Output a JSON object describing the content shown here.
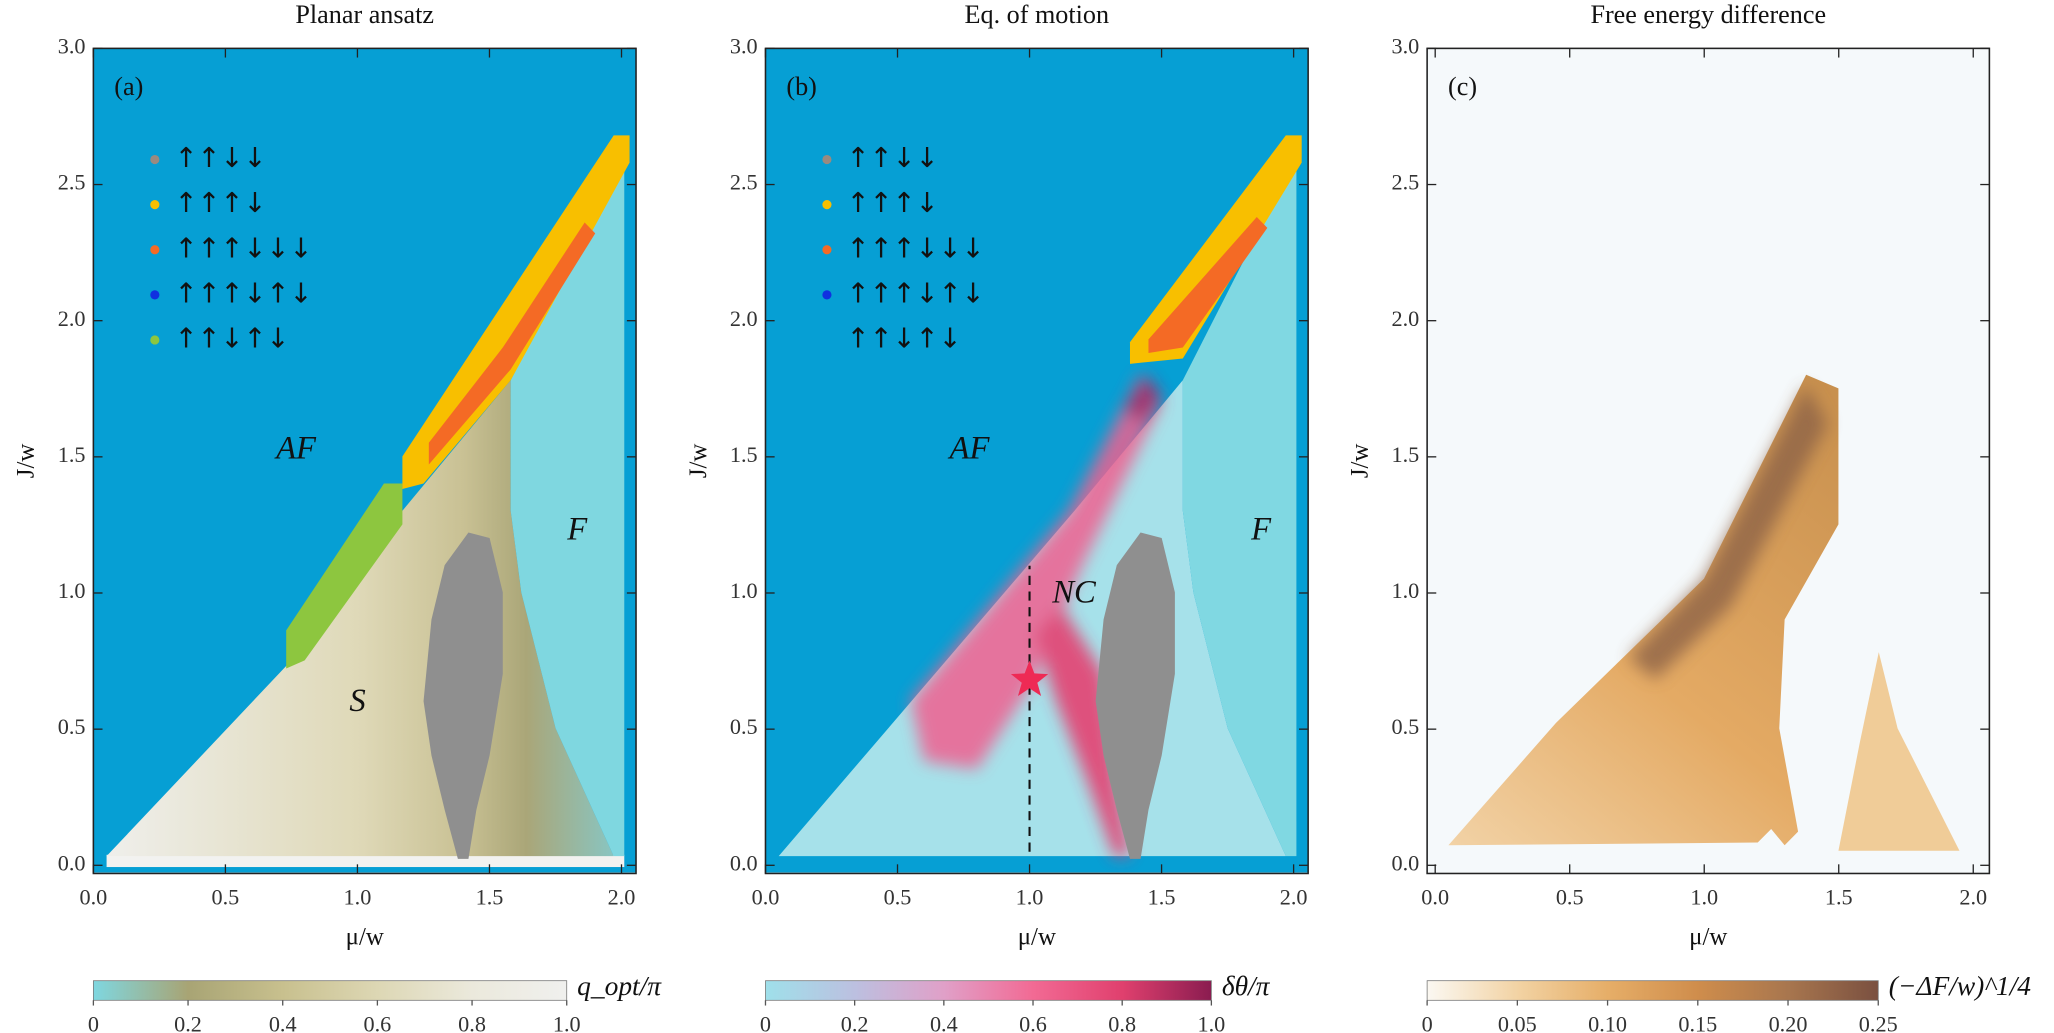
{
  "chart_data": [
    {
      "type": "heatmap",
      "title": "Planar ansatz",
      "panel_label": "(a)",
      "xlabel": "μ/w",
      "ylabel": "J/w",
      "xlim": [
        0,
        2.055
      ],
      "ylim": [
        -0.03,
        3.0
      ],
      "xticks": [
        {
          "value": 0,
          "label": "0.0"
        },
        0.5,
        {
          "value": 1,
          "label": "1.0"
        },
        1.5,
        {
          "value": 2,
          "label": "2.0"
        }
      ],
      "yticks": [
        {
          "value": 0,
          "label": "0.0"
        },
        0.5,
        {
          "value": 1,
          "label": "1.0"
        },
        1.5,
        {
          "value": 2,
          "label": "2.0"
        },
        2.5,
        {
          "value": 3,
          "label": "3.0"
        }
      ],
      "annotations": [
        "AF",
        "S",
        "F"
      ],
      "legend": [
        {
          "label": "↑↑↓↓",
          "color": "#9a8a80"
        },
        {
          "label": "↑↑↑↓",
          "color": "#f8bf00"
        },
        {
          "label": "↑↑↑↓↓↓",
          "color": "#f46a25"
        },
        {
          "label": "↑↑↑↓↑↓",
          "color": "#1030e0"
        },
        {
          "label": "↑↑↓↑↓",
          "color": "#8dc63f"
        }
      ],
      "colorbar": {
        "label": "q_opt/π",
        "lim": [
          0,
          1
        ],
        "ticks": [
          0,
          0.2,
          0.4,
          0.6,
          0.8,
          {
            "value": 1,
            "label": "1.0"
          }
        ],
        "colors": [
          "#7fd7e0",
          "#a8a474",
          "#c8c08e",
          "#ddd7b4",
          "#ebe9dc",
          "#f0f0ee"
        ]
      }
    },
    {
      "type": "heatmap",
      "title": "Eq. of motion",
      "panel_label": "(b)",
      "xlabel": "μ/w",
      "ylabel": "J/w",
      "xlim": [
        0,
        2.055
      ],
      "ylim": [
        -0.03,
        3.0
      ],
      "xticks": [
        {
          "value": 0,
          "label": "0.0"
        },
        0.5,
        {
          "value": 1,
          "label": "1.0"
        },
        1.5,
        {
          "value": 2,
          "label": "2.0"
        }
      ],
      "yticks": [
        {
          "value": 0,
          "label": "0.0"
        },
        0.5,
        {
          "value": 1,
          "label": "1.0"
        },
        1.5,
        {
          "value": 2,
          "label": "2.0"
        },
        2.5,
        {
          "value": 3,
          "label": "3.0"
        }
      ],
      "annotations": [
        "AF",
        "NC",
        "F"
      ],
      "legend": [
        {
          "label": "↑↑↓↓",
          "color": "#9a8a80"
        },
        {
          "label": "↑↑↑↓",
          "color": "#f8bf00"
        },
        {
          "label": "↑↑↑↓↓↓",
          "color": "#f46a25"
        },
        {
          "label": "↑↑↑↓↑↓",
          "color": "#1030e0"
        },
        {
          "label": "↑↑↓↑↓",
          "color": null
        }
      ],
      "marker": {
        "x": 1.0,
        "y": 0.68,
        "color": "#ee2a55"
      },
      "guide": {
        "x": 1.0,
        "y": [
          0.05,
          1.1
        ]
      },
      "colorbar": {
        "label": "δθ/π",
        "lim": [
          0,
          1
        ],
        "ticks": [
          0,
          0.2,
          0.4,
          0.6,
          0.8,
          {
            "value": 1,
            "label": "1.0"
          }
        ],
        "colors": [
          "#9fe0ea",
          "#bcc0e0",
          "#e0a0c8",
          "#f26a94",
          "#e0406e",
          "#8a1c50"
        ]
      }
    },
    {
      "type": "heatmap",
      "title": "Free energy difference",
      "panel_label": "(c)",
      "xlabel": "μ/w",
      "ylabel": "J/w",
      "xlim": [
        -0.03,
        2.06
      ],
      "ylim": [
        -0.03,
        3.0
      ],
      "xticks": [
        {
          "value": 0,
          "label": "0.0"
        },
        0.5,
        {
          "value": 1,
          "label": "1.0"
        },
        1.5,
        {
          "value": 2,
          "label": "2.0"
        }
      ],
      "yticks": [
        {
          "value": 0,
          "label": "0.0"
        },
        0.5,
        {
          "value": 1,
          "label": "1.0"
        },
        1.5,
        {
          "value": 2,
          "label": "2.0"
        },
        2.5,
        {
          "value": 3,
          "label": "3.0"
        }
      ],
      "colorbar": {
        "label": "(−ΔF/w)^1/4",
        "lim": [
          0,
          0.25
        ],
        "ticks": [
          0,
          0.05,
          {
            "value": 0.1,
            "label": "0.10"
          },
          0.15,
          {
            "value": 0.2,
            "label": "0.20"
          },
          0.25
        ],
        "colors": [
          "#fbf8f2",
          "#f2d3a4",
          "#e6ae68",
          "#cf8d4c",
          "#a8764e",
          "#7a5040"
        ]
      }
    }
  ]
}
